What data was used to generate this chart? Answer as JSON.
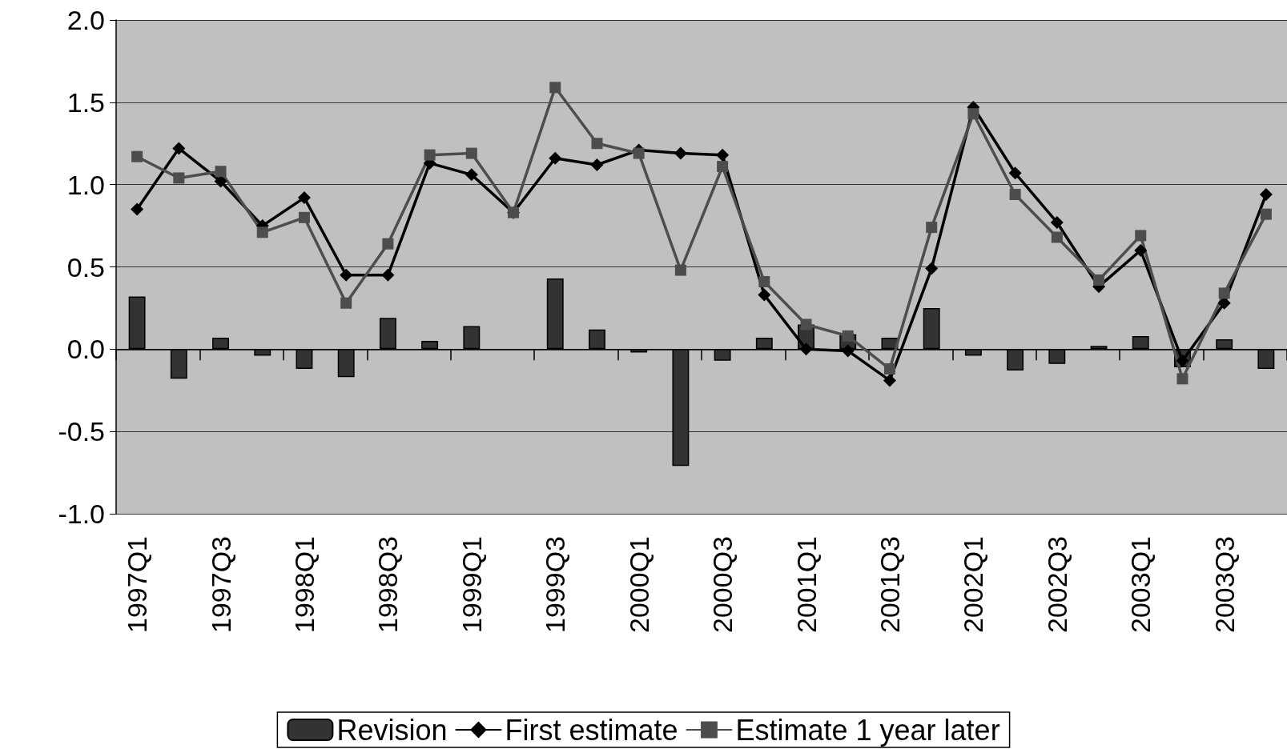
{
  "chart_data": {
    "type": "line",
    "categories": [
      "1997Q1",
      null,
      "1997Q3",
      null,
      "1998Q1",
      null,
      "1998Q3",
      null,
      "1999Q1",
      null,
      "1999Q3",
      null,
      "2000Q1",
      null,
      "2000Q3",
      null,
      "2001Q1",
      null,
      "2001Q3",
      null,
      "2002Q1",
      null,
      "2002Q3",
      null,
      "2003Q1",
      null,
      "2003Q3",
      null
    ],
    "series": [
      {
        "name": "Revision",
        "type": "bar",
        "color": "#333333",
        "values": [
          0.32,
          -0.18,
          0.07,
          -0.04,
          -0.12,
          -0.17,
          0.19,
          0.05,
          0.14,
          null,
          0.43,
          0.12,
          -0.02,
          -0.71,
          -0.07,
          0.07,
          0.15,
          0.09,
          0.07,
          0.25,
          -0.04,
          -0.13,
          -0.09,
          0.02,
          0.08,
          -0.11,
          0.06,
          -0.12
        ]
      },
      {
        "name": "First estimate",
        "marker": "diamond",
        "color": "#000000",
        "values": [
          0.85,
          1.22,
          1.02,
          0.75,
          0.92,
          0.45,
          0.45,
          1.13,
          1.06,
          0.83,
          1.16,
          1.12,
          1.21,
          1.19,
          1.18,
          0.33,
          0.0,
          -0.01,
          -0.19,
          0.49,
          1.47,
          1.07,
          0.77,
          0.38,
          0.6,
          -0.07,
          0.28,
          0.94
        ]
      },
      {
        "name": "Estimate 1 year later",
        "marker": "square",
        "color": "#4d4d4d",
        "values": [
          1.17,
          1.04,
          1.08,
          0.71,
          0.8,
          0.28,
          0.64,
          1.18,
          1.19,
          0.83,
          1.59,
          1.25,
          1.19,
          0.48,
          1.11,
          0.41,
          0.15,
          0.08,
          -0.12,
          0.74,
          1.43,
          0.94,
          0.68,
          0.42,
          0.69,
          -0.18,
          0.34,
          0.82
        ]
      }
    ],
    "ylim": [
      -1,
      2
    ],
    "yticks": [
      {
        "value": -1,
        "label": "-1.0"
      },
      {
        "value": -0.5,
        "label": "-0.5"
      },
      {
        "value": 0,
        "label": "0.0"
      },
      {
        "value": 0.5,
        "label": "0.5"
      },
      {
        "value": 1,
        "label": "1.0"
      },
      {
        "value": 1.5,
        "label": "1.5"
      },
      {
        "value": 2,
        "label": "2.0"
      }
    ],
    "grid": "y",
    "legend": "bottom",
    "line_style": "solid"
  }
}
